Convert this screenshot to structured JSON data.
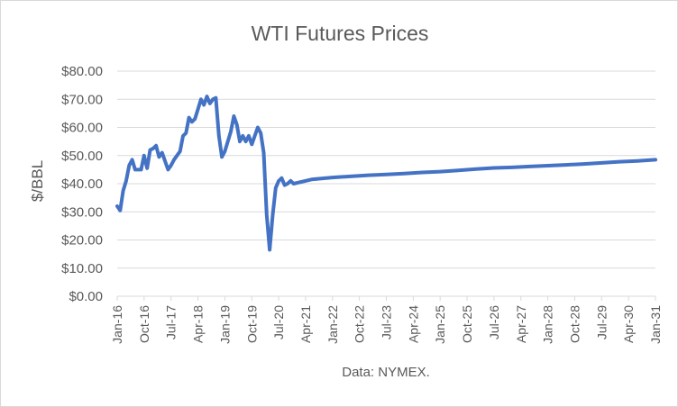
{
  "chart_data": {
    "type": "line",
    "title": "WTI Futures Prices",
    "ylabel": "$/BBL",
    "xlabel": "",
    "source_note": "Data: NYMEX.",
    "ylim": [
      0,
      80
    ],
    "yticks": [
      0,
      10,
      20,
      30,
      40,
      50,
      60,
      70,
      80
    ],
    "ytick_labels": [
      "$0.00",
      "$10.00",
      "$20.00",
      "$30.00",
      "$40.00",
      "$50.00",
      "$60.00",
      "$70.00",
      "$80.00"
    ],
    "xlim": [
      "2016-01",
      "2031-01"
    ],
    "xtick_labels": [
      "Jan-16",
      "Oct-16",
      "Jul-17",
      "Apr-18",
      "Jan-19",
      "Oct-19",
      "Jul-20",
      "Apr-21",
      "Jan-22",
      "Oct-22",
      "Jul-23",
      "Apr-24",
      "Jan-25",
      "Oct-25",
      "Jul-26",
      "Apr-27",
      "Jan-28",
      "Oct-28",
      "Jul-29",
      "Apr-30",
      "Jan-31"
    ],
    "grid": true,
    "legend": "none",
    "series_color": "#4472C4",
    "series": [
      {
        "x": [
          "2016-01",
          "2016-02",
          "2016-03",
          "2016-04",
          "2016-05",
          "2016-06",
          "2016-07",
          "2016-08",
          "2016-09",
          "2016-10",
          "2016-11",
          "2016-12",
          "2017-01",
          "2017-02",
          "2017-03",
          "2017-04",
          "2017-05",
          "2017-06",
          "2017-07",
          "2017-08",
          "2017-09",
          "2017-10",
          "2017-11",
          "2017-12",
          "2018-01",
          "2018-02",
          "2018-03",
          "2018-04",
          "2018-05",
          "2018-06",
          "2018-07",
          "2018-08",
          "2018-09",
          "2018-10",
          "2018-11",
          "2018-12",
          "2019-01",
          "2019-02",
          "2019-03",
          "2019-04",
          "2019-05",
          "2019-06",
          "2019-07",
          "2019-08",
          "2019-09",
          "2019-10",
          "2019-11",
          "2019-12",
          "2020-01",
          "2020-02",
          "2020-03",
          "2020-04",
          "2020-05",
          "2020-06",
          "2020-07",
          "2020-08",
          "2020-09",
          "2020-10",
          "2020-11",
          "2020-12",
          "2021-06",
          "2022-01",
          "2022-07",
          "2023-01",
          "2023-07",
          "2024-01",
          "2024-07",
          "2025-01",
          "2025-07",
          "2026-01",
          "2026-07",
          "2027-01",
          "2027-07",
          "2028-01",
          "2028-07",
          "2029-01",
          "2029-07",
          "2030-01",
          "2030-07",
          "2031-01"
        ],
        "y": [
          32,
          30.5,
          37.5,
          41,
          46.5,
          48.5,
          45,
          45,
          45,
          50,
          45.5,
          52,
          52.5,
          53.5,
          49.5,
          51,
          48,
          45,
          46.5,
          48.5,
          50,
          51.5,
          57,
          58,
          63.5,
          62,
          63,
          66.5,
          70,
          68,
          71,
          68.5,
          70,
          70.5,
          57,
          49.5,
          51.5,
          55,
          58.5,
          64,
          61,
          55,
          57,
          55,
          57,
          54,
          57,
          60,
          58,
          51,
          29,
          16.5,
          29,
          38.5,
          41,
          42,
          39.5,
          40,
          41,
          40,
          41.5,
          42.2,
          42.6,
          43,
          43.3,
          43.6,
          44,
          44.3,
          44.7,
          45.2,
          45.6,
          45.8,
          46.1,
          46.4,
          46.7,
          47,
          47.4,
          47.8,
          48.1,
          48.5
        ]
      }
    ]
  }
}
